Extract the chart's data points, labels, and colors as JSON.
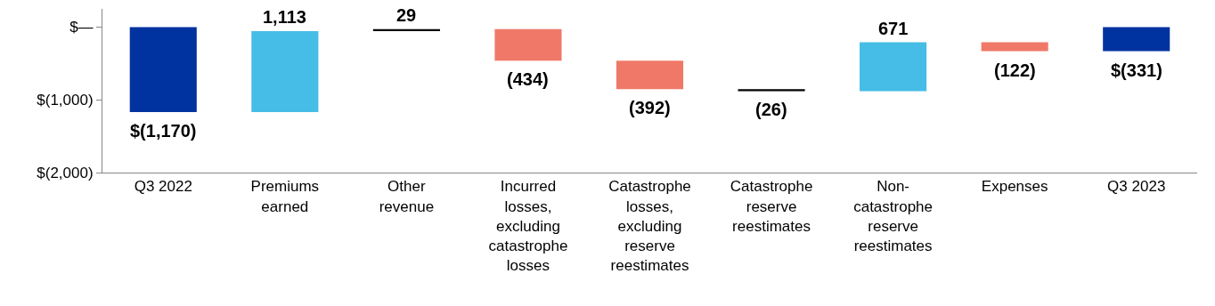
{
  "chart_data": {
    "type": "bar",
    "categories": [
      "Q3 2022",
      "Premiums earned",
      "Other revenue",
      "Incurred losses, excluding catastrophe losses",
      "Catastrophe losses, excluding reserve reestimates",
      "Catastrophe reserve reestimates",
      "Non-catastrophe reserve reestimates",
      "Expenses",
      "Q3 2023"
    ],
    "values": [
      -1170,
      1113,
      29,
      -434,
      -392,
      -26,
      671,
      -122,
      -331
    ],
    "base": [
      0,
      -1170,
      -57,
      -28,
      -462,
      -854,
      -880,
      -209,
      0
    ],
    "colors": [
      "#0033a0",
      "#45bde6",
      "#000000",
      "#f07868",
      "#f07868",
      "#000000",
      "#45bde6",
      "#f07868",
      "#0033a0"
    ],
    "value_labels": [
      "$(1,170)",
      "1,113",
      "29",
      "(434)",
      "(392)",
      "(26)",
      "671",
      "(122)",
      "$(331)"
    ],
    "ylim": [
      -2000,
      250
    ],
    "yticks": [
      {
        "value": 0,
        "label": "$—"
      },
      {
        "value": -1000,
        "label": "$(1,000)"
      },
      {
        "value": -2000,
        "label": "$(2,000)"
      }
    ],
    "legend": false
  }
}
